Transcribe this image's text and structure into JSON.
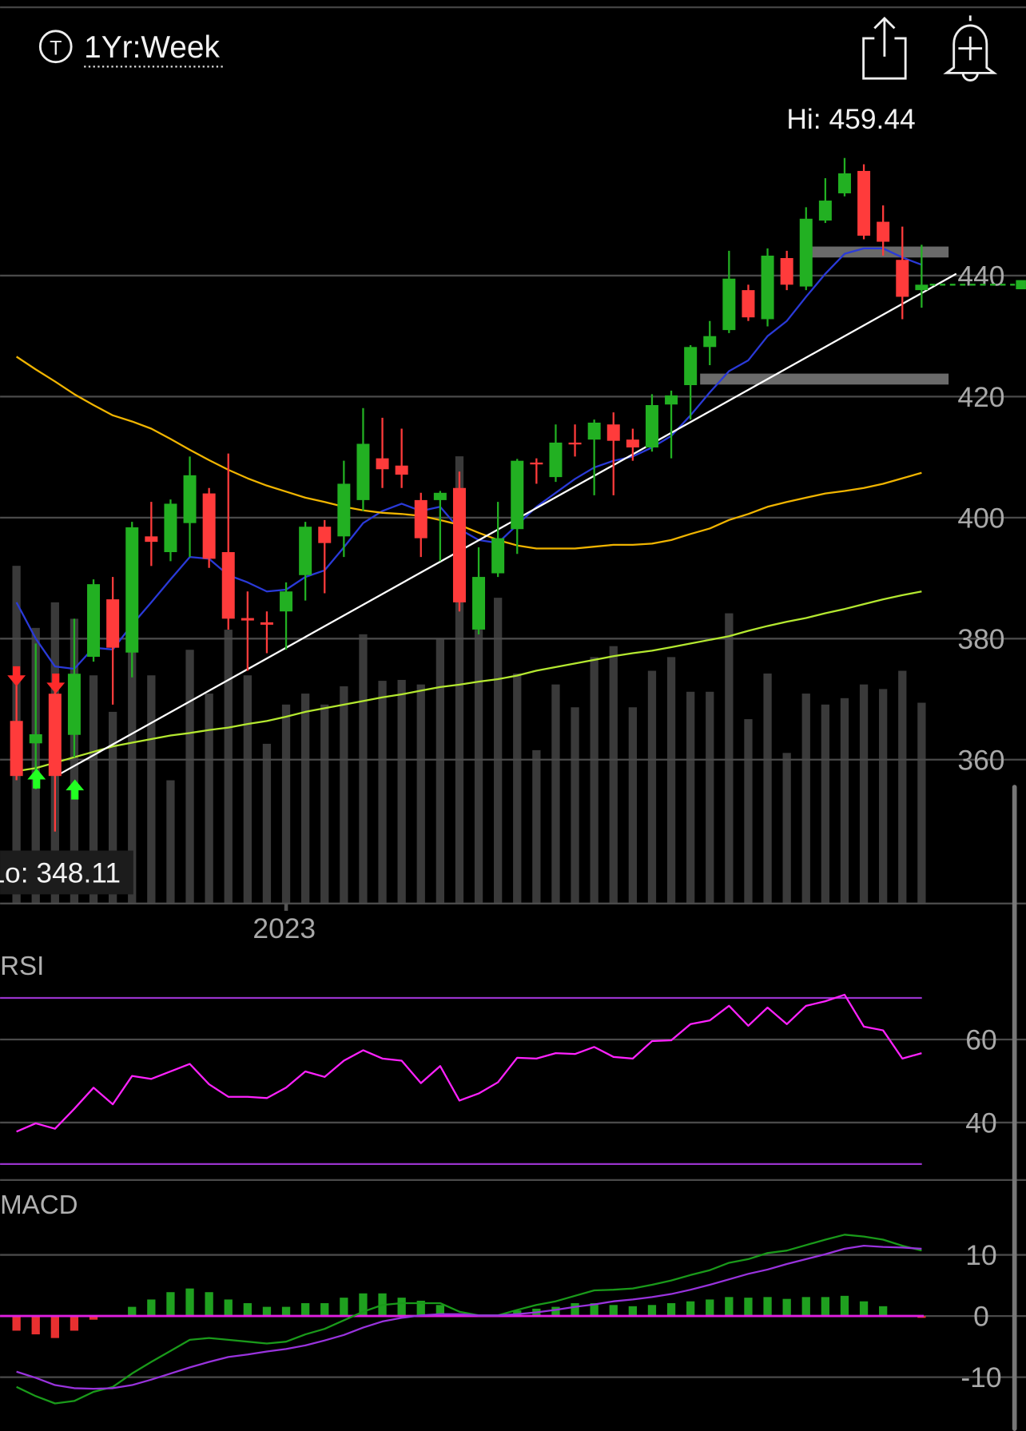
{
  "header": {
    "icon": "T",
    "timeframe": "1Yr:Week"
  },
  "chart_data": [
    {
      "type": "candlestick",
      "categories": [
        null,
        null,
        null,
        null,
        null,
        null,
        null,
        null,
        null,
        null,
        null,
        null,
        null,
        null,
        "2023",
        null,
        null,
        null,
        null,
        null,
        null,
        null,
        null,
        null,
        null,
        null,
        null,
        null,
        null,
        null,
        null,
        null,
        null,
        null,
        null,
        null,
        null,
        null,
        null,
        null,
        null,
        null,
        null,
        null,
        null,
        null,
        null,
        null
      ],
      "open": [
        366.4,
        362.7,
        370.9,
        364.1,
        377.0,
        386.5,
        377.7,
        396.9,
        394.3,
        399.1,
        404.0,
        394.3,
        383.4,
        382.7,
        384.5,
        390.5,
        398.5,
        396.9,
        402.9,
        409.8,
        408.6,
        402.9,
        402.9,
        404.9,
        381.5,
        390.8,
        398.1,
        409.1,
        406.7,
        412.4,
        412.9,
        415.4,
        412.9,
        411.6,
        418.7,
        421.9,
        428.2,
        431.0,
        437.6,
        432.8,
        442.9,
        438.2,
        449.1,
        453.6,
        457.3,
        448.9,
        442.6,
        437.6
      ],
      "high": [
        372.4,
        379.2,
        373.9,
        383.3,
        389.8,
        390.2,
        399.3,
        402.6,
        403.0,
        410.1,
        404.9,
        410.6,
        387.8,
        384.5,
        389.3,
        399.3,
        399.6,
        409.4,
        418.1,
        416.5,
        414.7,
        404.1,
        404.4,
        407.6,
        395.1,
        402.6,
        409.7,
        409.8,
        415.4,
        415.4,
        416.2,
        417.4,
        414.7,
        420.4,
        421.0,
        428.5,
        432.5,
        444.1,
        438.5,
        444.5,
        444.1,
        451.3,
        456.1,
        459.44,
        458.4,
        451.6,
        448.1,
        445.1
      ],
      "low": [
        356.6,
        355.1,
        348.11,
        360.4,
        376.2,
        369.1,
        373.6,
        392.0,
        392.8,
        393.5,
        391.7,
        381.5,
        374.7,
        377.6,
        378.2,
        386.3,
        387.5,
        393.5,
        401.1,
        404.9,
        404.9,
        393.5,
        392.8,
        384.5,
        380.7,
        390.2,
        394.0,
        405.6,
        405.9,
        410.1,
        403.7,
        403.7,
        409.4,
        410.9,
        409.8,
        416.2,
        425.2,
        430.5,
        432.5,
        431.6,
        437.6,
        437.6,
        448.7,
        453.1,
        446.0,
        443.3,
        432.8,
        434.7
      ],
      "close": [
        357.3,
        364.2,
        357.3,
        374.2,
        389.0,
        378.5,
        398.4,
        396.0,
        402.3,
        407.0,
        393.2,
        383.3,
        383.0,
        382.3,
        387.8,
        398.5,
        395.8,
        405.6,
        412.2,
        408.0,
        407.1,
        396.6,
        404.1,
        386.0,
        390.2,
        396.6,
        409.4,
        408.9,
        412.4,
        412.1,
        415.7,
        412.7,
        411.6,
        418.6,
        420.2,
        428.2,
        430.0,
        439.5,
        433.1,
        443.3,
        438.5,
        449.4,
        452.4,
        456.9,
        446.6,
        445.6,
        436.5,
        438.5
      ],
      "up_color": "#22b022",
      "down_color": "#ff3b3b",
      "ylim": [
        336,
        470
      ],
      "yticks": [
        360,
        380,
        400,
        420,
        440
      ],
      "grid": true,
      "hi_label": "Hi: 459.44",
      "lo_label": "Lo: 348.11",
      "overlays": [
        {
          "color": "#2a3ad8",
          "values": [
            386.0,
            380.0,
            375.4,
            375.0,
            378.5,
            378.2,
            382.3,
            386.0,
            389.8,
            393.5,
            393.2,
            390.5,
            389.3,
            387.8,
            388.1,
            390.2,
            391.3,
            395.1,
            399.1,
            401.1,
            402.3,
            401.1,
            401.8,
            398.1,
            396.3,
            395.8,
            398.8,
            401.8,
            404.1,
            406.4,
            408.3,
            409.4,
            410.1,
            411.6,
            413.5,
            416.9,
            420.7,
            424.2,
            426.0,
            430.0,
            432.5,
            436.5,
            440.3,
            443.6,
            444.5,
            444.5,
            443.0,
            441.8
          ]
        },
        {
          "color": "#f0b400",
          "values": [
            426.6,
            424.5,
            422.5,
            420.4,
            418.6,
            416.9,
            415.9,
            414.7,
            413.0,
            411.2,
            409.5,
            407.9,
            406.5,
            405.3,
            404.3,
            403.3,
            402.6,
            401.8,
            401.2,
            400.8,
            400.6,
            400.3,
            399.6,
            398.8,
            397.5,
            396.3,
            395.4,
            394.9,
            394.9,
            394.9,
            395.2,
            395.5,
            395.5,
            395.7,
            396.3,
            397.3,
            398.2,
            399.6,
            400.6,
            401.8,
            402.6,
            403.3,
            404.0,
            404.4,
            404.9,
            405.6,
            406.5,
            407.4
          ]
        },
        {
          "color": "#b4e830",
          "values": [
            358.1,
            358.6,
            359.5,
            360.4,
            361.3,
            362.2,
            362.8,
            363.4,
            364.0,
            364.4,
            364.9,
            365.3,
            365.9,
            366.4,
            367.1,
            367.9,
            368.5,
            369.1,
            369.7,
            370.3,
            370.8,
            371.4,
            372.0,
            372.4,
            372.9,
            373.3,
            373.9,
            374.7,
            375.3,
            375.9,
            376.5,
            377.1,
            377.6,
            378.0,
            378.6,
            379.2,
            379.8,
            380.4,
            381.3,
            382.1,
            382.8,
            383.4,
            384.2,
            384.9,
            385.7,
            386.5,
            387.2,
            387.8
          ]
        }
      ],
      "trendline": {
        "x": [
          2.23,
          48.8
        ],
        "y": [
          357.6,
          440.3
        ],
        "color": "#ffffff"
      },
      "levels": [
        {
          "value": 443.9,
          "x": [
            41.1,
            48.4
          ]
        },
        {
          "value": 422.9,
          "x": [
            35.5,
            48.4
          ]
        }
      ],
      "level_color": "#6a6a6a",
      "last_color": "#22b022",
      "volume": {
        "color": "#3a3a3a",
        "vlim": [
          0,
          600
        ],
        "values": [
          370,
          302,
          330,
          312,
          250,
          210,
          300,
          250,
          135,
          278,
          230,
          300,
          250,
          175,
          218,
          230,
          218,
          238,
          295,
          244,
          245,
          240,
          290,
          490,
          300,
          335,
          252,
          168,
          240,
          215,
          270,
          282,
          215,
          255,
          270,
          232,
          232,
          318,
          202,
          252,
          165,
          230,
          218,
          225,
          240,
          235,
          255,
          220
        ]
      }
    },
    {
      "type": "line",
      "title": "RSI",
      "color": "#ff22ff",
      "values": [
        37.8,
        39.8,
        38.5,
        43.3,
        48.4,
        44.4,
        51.2,
        50.5,
        52.3,
        54.1,
        49.2,
        46.2,
        46.2,
        45.9,
        48.4,
        52.3,
        51.0,
        54.9,
        57.4,
        55.4,
        54.9,
        49.5,
        53.6,
        45.3,
        47.0,
        49.7,
        55.6,
        55.4,
        56.7,
        56.5,
        58.2,
        55.8,
        55.4,
        59.6,
        59.8,
        63.7,
        64.6,
        68.1,
        63.3,
        67.7,
        63.7,
        68.1,
        69.2,
        70.8,
        63.1,
        62.2,
        55.4,
        56.7
      ],
      "ylim": [
        26,
        82
      ],
      "yticks": [
        40,
        60
      ],
      "grid": true,
      "bands": [
        70,
        30
      ],
      "band_color": "#9933cc"
    },
    {
      "type": "macd",
      "title": "MACD",
      "series": [
        {
          "color": "#1a9a1a",
          "values": [
            -11.6,
            -13.1,
            -14.3,
            -13.9,
            -12.4,
            -11.6,
            -9.4,
            -7.5,
            -5.7,
            -3.9,
            -3.6,
            -3.9,
            -4.2,
            -4.5,
            -4.2,
            -3.0,
            -2.1,
            -0.7,
            0.7,
            1.8,
            2.1,
            2.1,
            2.1,
            0.7,
            0.1,
            0.1,
            1.0,
            1.8,
            2.4,
            3.3,
            4.2,
            4.3,
            4.5,
            5.1,
            5.8,
            6.7,
            7.5,
            8.7,
            9.3,
            10.3,
            10.7,
            11.6,
            12.5,
            13.3,
            13.0,
            12.5,
            11.5,
            10.7
          ]
        },
        {
          "color": "#9933dd",
          "values": [
            -9.1,
            -10.1,
            -11.3,
            -11.8,
            -11.9,
            -11.8,
            -11.3,
            -10.4,
            -9.4,
            -8.4,
            -7.5,
            -6.7,
            -6.3,
            -5.8,
            -5.4,
            -4.8,
            -4.0,
            -3.1,
            -1.9,
            -0.9,
            -0.3,
            0.1,
            0.3,
            0.3,
            0.1,
            0.1,
            0.3,
            0.6,
            1.0,
            1.5,
            1.9,
            2.4,
            2.7,
            3.1,
            3.6,
            4.3,
            5.1,
            6.0,
            6.9,
            7.6,
            8.5,
            9.3,
            10.1,
            11.0,
            11.5,
            11.3,
            11.2,
            11.0
          ]
        }
      ],
      "histogram": {
        "up_color": "#1fa01f",
        "down_color": "#e83030",
        "values": [
          -2.4,
          -3.0,
          -3.6,
          -2.4,
          -0.6,
          0,
          1.5,
          2.7,
          3.9,
          4.5,
          3.9,
          2.7,
          2.1,
          1.5,
          1.5,
          2.1,
          2.1,
          3.0,
          3.7,
          3.7,
          3.0,
          2.5,
          1.8,
          0.3,
          0,
          0.1,
          0.9,
          1.2,
          1.5,
          2.1,
          2.1,
          1.8,
          1.6,
          1.8,
          2.1,
          2.4,
          2.7,
          3.1,
          3.0,
          3.1,
          2.8,
          3.1,
          3.1,
          3.3,
          2.4,
          1.6,
          0.1,
          -0.3
        ]
      },
      "zero_color": "#e020e0",
      "ylim": [
        -19,
        21
      ],
      "yticks": [
        -10,
        0,
        10
      ],
      "grid": true
    }
  ]
}
